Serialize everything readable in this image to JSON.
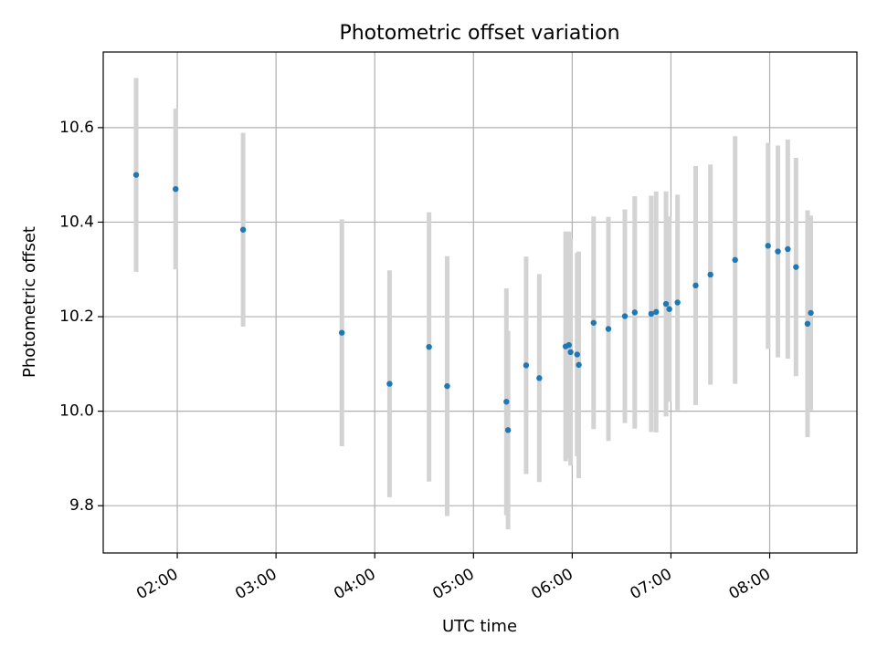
{
  "chart_data": {
    "type": "scatter",
    "title": "Photometric offset variation",
    "xlabel": "UTC time",
    "ylabel": "Photometric offset",
    "x_kind": "time",
    "xlim": [
      "01:15",
      "08:53"
    ],
    "ylim": [
      9.7,
      10.76
    ],
    "xticks": [
      "02:00",
      "03:00",
      "04:00",
      "05:00",
      "06:00",
      "07:00",
      "08:00"
    ],
    "yticks": [
      "9.8",
      "10.0",
      "10.2",
      "10.4",
      "10.6"
    ],
    "grid": true,
    "colors": {
      "point": "#1f77b4",
      "errorbar": "#d3d3d3",
      "grid": "#b0b0b0"
    },
    "points": [
      {
        "x": "01:35",
        "y": 10.5,
        "err": 0.205
      },
      {
        "x": "01:59",
        "y": 10.47,
        "err": 0.17
      },
      {
        "x": "02:40",
        "y": 10.384,
        "err": 0.205
      },
      {
        "x": "03:40",
        "y": 10.166,
        "err": 0.24
      },
      {
        "x": "04:09",
        "y": 10.058,
        "err": 0.24
      },
      {
        "x": "04:33",
        "y": 10.136,
        "err": 0.285
      },
      {
        "x": "04:44",
        "y": 10.053,
        "err": 0.275
      },
      {
        "x": "05:20",
        "y": 10.02,
        "err": 0.24
      },
      {
        "x": "05:21",
        "y": 9.96,
        "err": 0.21
      },
      {
        "x": "05:32",
        "y": 10.097,
        "err": 0.23
      },
      {
        "x": "05:40",
        "y": 10.07,
        "err": 0.22
      },
      {
        "x": "05:56",
        "y": 10.137,
        "err": 0.243
      },
      {
        "x": "05:58",
        "y": 10.14,
        "err": 0.24
      },
      {
        "x": "05:59",
        "y": 10.125,
        "err": 0.24
      },
      {
        "x": "06:03",
        "y": 10.12,
        "err": 0.215
      },
      {
        "x": "06:04",
        "y": 10.098,
        "err": 0.24
      },
      {
        "x": "06:13",
        "y": 10.187,
        "err": 0.225
      },
      {
        "x": "06:22",
        "y": 10.174,
        "err": 0.237
      },
      {
        "x": "06:32",
        "y": 10.201,
        "err": 0.226
      },
      {
        "x": "06:38",
        "y": 10.209,
        "err": 0.246
      },
      {
        "x": "06:48",
        "y": 10.206,
        "err": 0.25
      },
      {
        "x": "06:51",
        "y": 10.21,
        "err": 0.255
      },
      {
        "x": "06:57",
        "y": 10.227,
        "err": 0.238
      },
      {
        "x": "06:59",
        "y": 10.216,
        "err": 0.196
      },
      {
        "x": "07:04",
        "y": 10.23,
        "err": 0.228
      },
      {
        "x": "07:15",
        "y": 10.266,
        "err": 0.253
      },
      {
        "x": "07:24",
        "y": 10.289,
        "err": 0.233
      },
      {
        "x": "07:39",
        "y": 10.32,
        "err": 0.262
      },
      {
        "x": "07:59",
        "y": 10.35,
        "err": 0.218
      },
      {
        "x": "08:05",
        "y": 10.338,
        "err": 0.224
      },
      {
        "x": "08:11",
        "y": 10.343,
        "err": 0.232
      },
      {
        "x": "08:16",
        "y": 10.305,
        "err": 0.231
      },
      {
        "x": "08:23",
        "y": 10.185,
        "err": 0.24
      },
      {
        "x": "08:25",
        "y": 10.208,
        "err": 0.206
      }
    ]
  }
}
